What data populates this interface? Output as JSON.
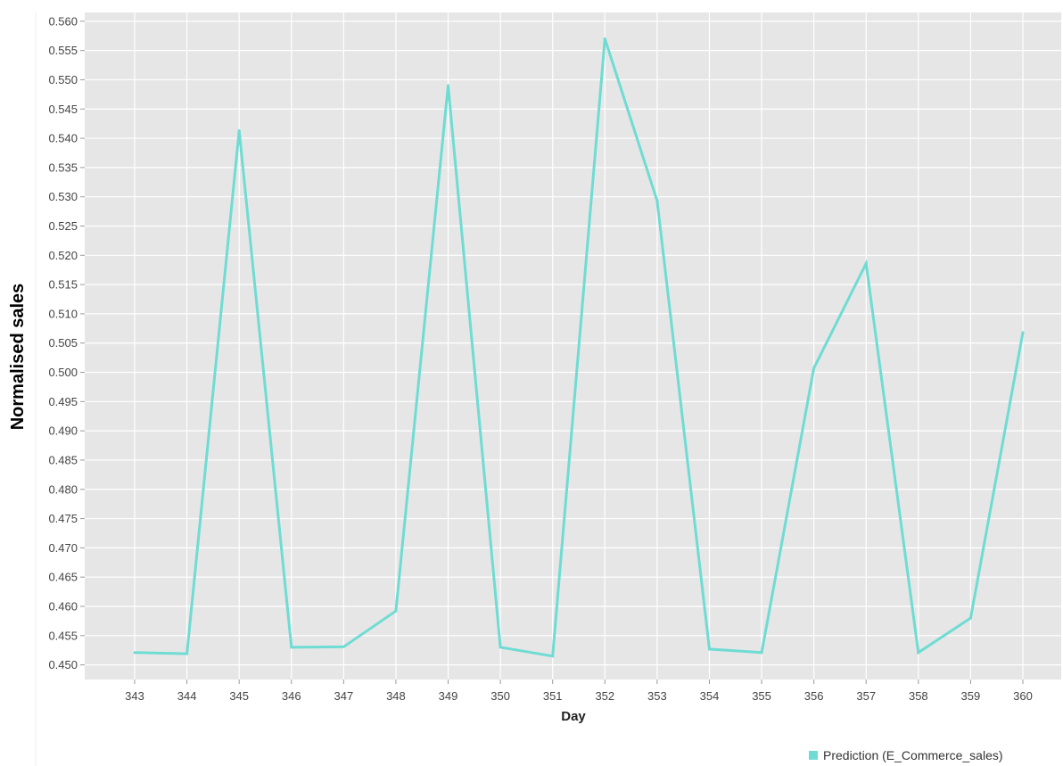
{
  "chart_data": {
    "type": "line",
    "title": "",
    "xlabel": "Day",
    "ylabel": "Normalised sales",
    "x": [
      "343",
      "344",
      "345",
      "346",
      "347",
      "348",
      "349",
      "350",
      "351",
      "352",
      "353",
      "354",
      "355",
      "356",
      "357",
      "358",
      "359",
      "360"
    ],
    "series": [
      {
        "name": "Prediction (E_Commerce_sales)",
        "color": "#6fdcd4",
        "values": [
          0.4521,
          0.4519,
          0.5413,
          0.453,
          0.4531,
          0.4592,
          0.549,
          0.453,
          0.4515,
          0.557,
          0.5293,
          0.4527,
          0.4521,
          0.5007,
          0.5186,
          0.4521,
          0.458,
          0.5068
        ]
      }
    ],
    "yticks": [
      "0.450",
      "0.455",
      "0.460",
      "0.465",
      "0.470",
      "0.475",
      "0.480",
      "0.485",
      "0.490",
      "0.495",
      "0.500",
      "0.505",
      "0.510",
      "0.515",
      "0.520",
      "0.525",
      "0.530",
      "0.535",
      "0.540",
      "0.545",
      "0.550",
      "0.555",
      "0.560"
    ],
    "ylim": [
      0.4475,
      0.5615
    ],
    "grid": true,
    "legend": "bottom-right",
    "plot_background": "#e6e6e6",
    "grid_color": "#ffffff"
  }
}
